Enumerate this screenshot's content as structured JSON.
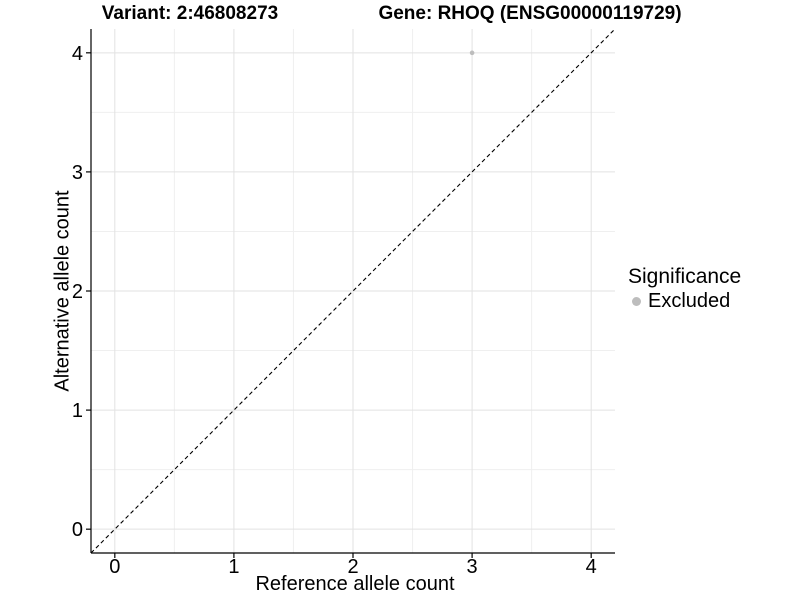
{
  "chart_data": {
    "type": "scatter",
    "title_variant": "Variant: 2:46808273",
    "title_gene": "Gene: RHOQ (ENSG00000119729)",
    "xlabel": "Reference allele count",
    "ylabel": "Alternative allele count",
    "xlim": [
      -0.2,
      4.2
    ],
    "ylim": [
      -0.2,
      4.2
    ],
    "xticks": [
      0,
      1,
      2,
      3,
      4
    ],
    "yticks": [
      0,
      1,
      2,
      3,
      4
    ],
    "xticks_minor": [
      0.5,
      1.5,
      2.5,
      3.5
    ],
    "yticks_minor": [
      0.5,
      1.5,
      2.5,
      3.5
    ],
    "grid": {
      "major_color": "#e2e2e2",
      "minor_color": "#efefef",
      "background": "#ffffff"
    },
    "axis_color": "#000000",
    "reference_line": {
      "type": "identity",
      "style": "dashed",
      "color": "#000000",
      "from": [
        -0.2,
        -0.2
      ],
      "to": [
        4.2,
        4.2
      ]
    },
    "series": [
      {
        "name": "Excluded",
        "color": "#bdbdbd",
        "points": [
          {
            "x": 3,
            "y": 4
          }
        ]
      }
    ],
    "legend": {
      "title": "Significance",
      "position": "right",
      "items": [
        {
          "label": "Excluded",
          "color": "#bdbdbd"
        }
      ]
    }
  }
}
